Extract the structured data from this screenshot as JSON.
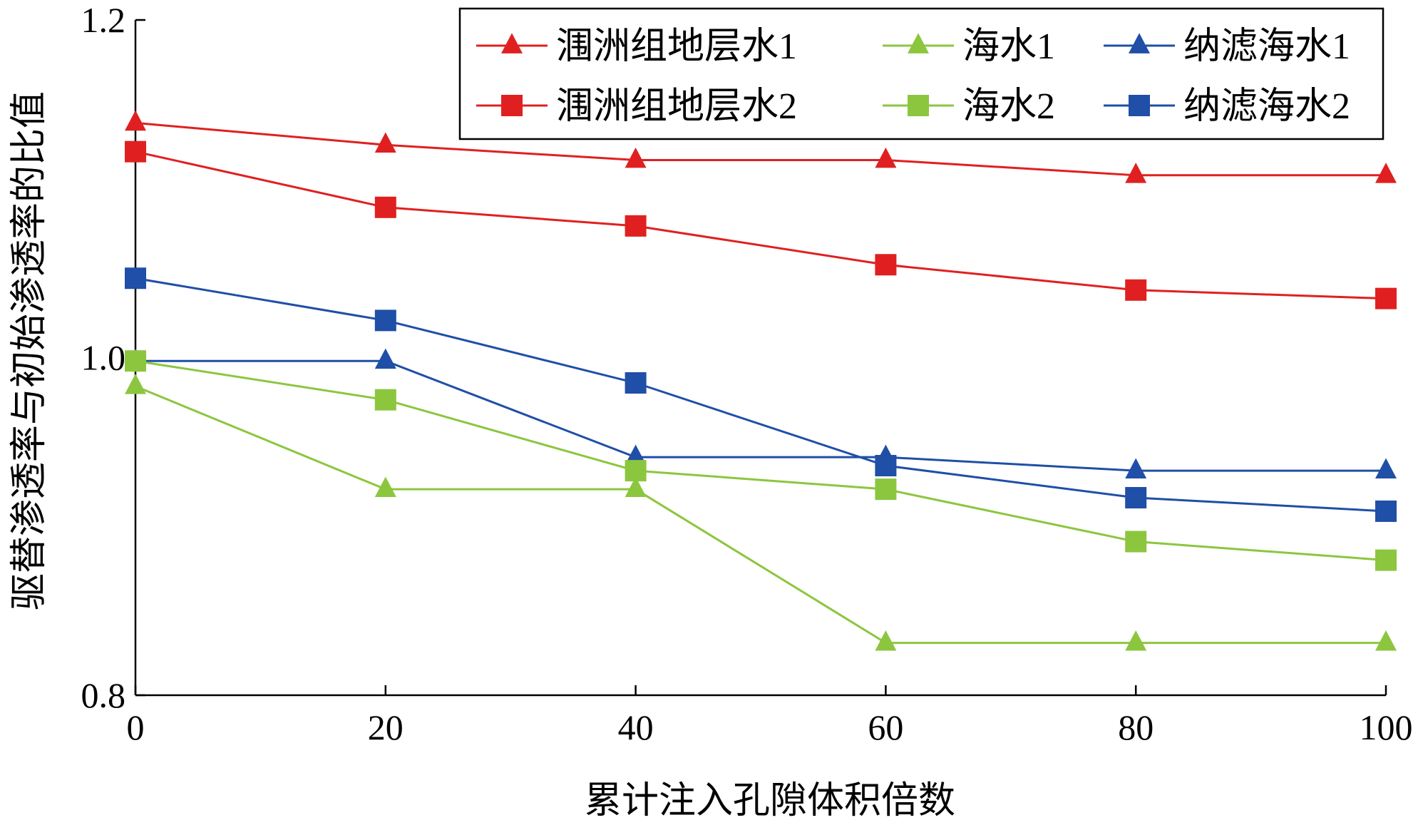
{
  "chart_data": {
    "type": "line",
    "xlabel": "累计注入孔隙体积倍数",
    "ylabel": "驱替渗透率与初始渗透率的比值",
    "x": [
      0,
      20,
      40,
      60,
      80,
      100
    ],
    "xticks": [
      "0",
      "20",
      "40",
      "60",
      "80",
      "100"
    ],
    "yticks": [
      "0.8",
      "1.0",
      "1.2"
    ],
    "xlim": [
      0,
      100
    ],
    "ylim": [
      0.8,
      1.2
    ],
    "grid": false,
    "legend_position": "top-right",
    "series": [
      {
        "name": "涠洲组地层水1",
        "color": "#e02020",
        "marker": "triangle",
        "values": [
          1.139,
          1.126,
          1.117,
          1.117,
          1.108,
          1.108
        ]
      },
      {
        "name": "海水1",
        "color": "#8cc63f",
        "marker": "triangle",
        "values": [
          0.983,
          0.922,
          0.922,
          0.831,
          0.831,
          0.831
        ]
      },
      {
        "name": "纳滤海水1",
        "color": "#1f4fa6",
        "marker": "triangle",
        "values": [
          0.998,
          0.998,
          0.941,
          0.941,
          0.933,
          0.933
        ]
      },
      {
        "name": "涠洲组地层水2",
        "color": "#e02020",
        "marker": "square",
        "values": [
          1.122,
          1.089,
          1.078,
          1.055,
          1.04,
          1.035
        ]
      },
      {
        "name": "海水2",
        "color": "#8cc63f",
        "marker": "square",
        "values": [
          0.998,
          0.975,
          0.933,
          0.922,
          0.891,
          0.88
        ]
      },
      {
        "name": "纳滤海水2",
        "color": "#1f4fa6",
        "marker": "square",
        "values": [
          1.047,
          1.022,
          0.985,
          0.936,
          0.917,
          0.909
        ]
      }
    ]
  }
}
